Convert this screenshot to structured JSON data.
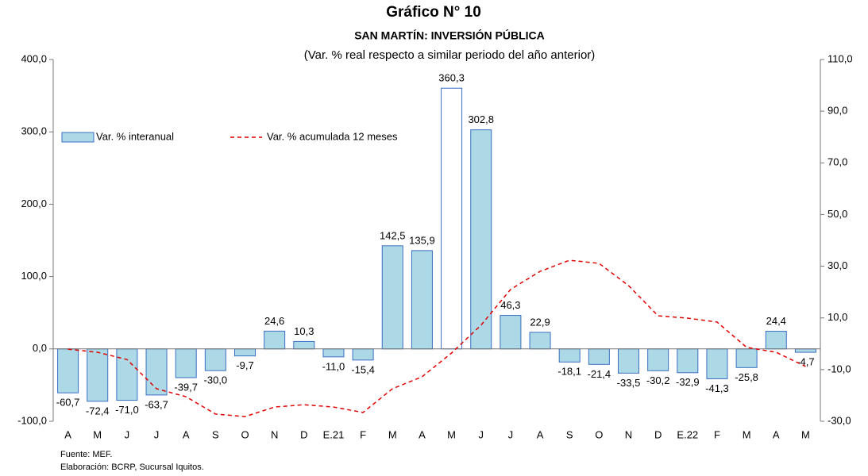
{
  "chart_data": {
    "type": "bar",
    "title": "Gráfico N° 10",
    "subtitle": "SAN MARTÍN: INVERSIÓN PÚBLICA",
    "note": "(Var. % real respecto a similar periodo del año anterior)",
    "source": "Fuente: MEF.",
    "credit": "Elaboración: BCRP, Sucursal Iquitos.",
    "categories": [
      "A",
      "M",
      "J",
      "J",
      "A",
      "S",
      "O",
      "N",
      "D",
      "E.21",
      "F",
      "M",
      "A",
      "M",
      "J",
      "J",
      "A",
      "S",
      "O",
      "N",
      "D",
      "E.22",
      "F",
      "M",
      "A",
      "M"
    ],
    "series": [
      {
        "name": "Var. % interanual",
        "type": "bar",
        "color": "#add8e6",
        "edge": "#3a6fc4",
        "bar_colors": [
          "#add8e6",
          "#add8e6",
          "#add8e6",
          "#add8e6",
          "#add8e6",
          "#add8e6",
          "#add8e6",
          "#add8e6",
          "#add8e6",
          "#add8e6",
          "#add8e6",
          "#add8e6",
          "#add8e6",
          "#ffffff",
          "#add8e6",
          "#add8e6",
          "#add8e6",
          "#add8e6",
          "#add8e6",
          "#add8e6",
          "#add8e6",
          "#add8e6",
          "#add8e6",
          "#add8e6",
          "#add8e6",
          "#add8e6"
        ],
        "values": [
          -60.7,
          -72.4,
          -71.0,
          -63.7,
          -39.7,
          -30.0,
          -9.7,
          24.6,
          10.3,
          -11.0,
          -15.4,
          142.5,
          135.9,
          360.3,
          302.8,
          46.3,
          22.9,
          -18.1,
          -21.4,
          -33.5,
          -30.2,
          -32.9,
          -41.3,
          -25.8,
          24.4,
          -4.7
        ],
        "value_labels": [
          "-60,7",
          "-72,4",
          "-71,0",
          "-63,7",
          "-39,7",
          "-30,0",
          "-9,7",
          "24,6",
          "10,3",
          "-11,0",
          "-15,4",
          "142,5",
          "135,9",
          "360,3",
          "302,8",
          "46,3",
          "22,9",
          "-18,1",
          "-21,4",
          "-33,5",
          "-30,2",
          "-32,9",
          "-41,3",
          "-25,8",
          "24,4",
          "-4,7"
        ]
      },
      {
        "name": "Var. % acumulada 12 meses",
        "type": "line",
        "axis": "y2",
        "color": "#e00000",
        "dashed": true,
        "values": [
          -2.1,
          -3.3,
          -6.1,
          -17.4,
          -20.5,
          -27.2,
          -28.2,
          -24.5,
          -23.6,
          -24.5,
          -26.6,
          -17.4,
          -12.8,
          -3.6,
          7.2,
          21.0,
          28.0,
          32.3,
          31.1,
          22.5,
          10.8,
          9.9,
          8.4,
          -1.4,
          -3.3,
          -8.8
        ]
      }
    ],
    "ylim": [
      -100,
      400
    ],
    "yticks": [
      {
        "value": -100,
        "label": "-100,0"
      },
      {
        "value": 0,
        "label": "0,0"
      },
      {
        "value": 100,
        "label": "100,0"
      },
      {
        "value": 200,
        "label": "200,0"
      },
      {
        "value": 300,
        "label": "300,0"
      },
      {
        "value": 400,
        "label": "400,0"
      }
    ],
    "y2lim": [
      -30,
      110
    ],
    "y2ticks": [
      {
        "value": -30,
        "label": "-30,0"
      },
      {
        "value": -10,
        "label": "-10,0"
      },
      {
        "value": 10,
        "label": "10,0"
      },
      {
        "value": 30,
        "label": "30,0"
      },
      {
        "value": 50,
        "label": "50,0"
      },
      {
        "value": 70,
        "label": "70,0"
      },
      {
        "value": 90,
        "label": "90,0"
      },
      {
        "value": 110,
        "label": "110,0"
      }
    ],
    "legend": "upper left"
  }
}
